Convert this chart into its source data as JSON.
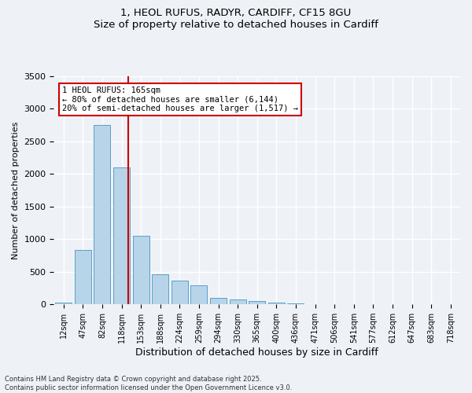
{
  "title_line1": "1, HEOL RUFUS, RADYR, CARDIFF, CF15 8GU",
  "title_line2": "Size of property relative to detached houses in Cardiff",
  "xlabel": "Distribution of detached houses by size in Cardiff",
  "ylabel": "Number of detached properties",
  "categories": [
    "12sqm",
    "47sqm",
    "82sqm",
    "118sqm",
    "153sqm",
    "188sqm",
    "224sqm",
    "259sqm",
    "294sqm",
    "330sqm",
    "365sqm",
    "400sqm",
    "436sqm",
    "471sqm",
    "506sqm",
    "541sqm",
    "577sqm",
    "612sqm",
    "647sqm",
    "683sqm",
    "718sqm"
  ],
  "values": [
    30,
    830,
    2750,
    2100,
    1050,
    460,
    360,
    290,
    100,
    80,
    50,
    30,
    15,
    5,
    3,
    2,
    1,
    1,
    0,
    0,
    0
  ],
  "bar_color": "#b8d4e8",
  "bar_edge_color": "#5a9fc8",
  "vline_color": "#cc0000",
  "vline_x": 3.35,
  "annotation_text": "1 HEOL RUFUS: 165sqm\n← 80% of detached houses are smaller (6,144)\n20% of semi-detached houses are larger (1,517) →",
  "annotation_box_color": "#cc0000",
  "ylim": [
    0,
    3500
  ],
  "yticks": [
    0,
    500,
    1000,
    1500,
    2000,
    2500,
    3000,
    3500
  ],
  "background_color": "#eef2f7",
  "grid_color": "#ffffff",
  "footer_text": "Contains HM Land Registry data © Crown copyright and database right 2025.\nContains public sector information licensed under the Open Government Licence v3.0."
}
